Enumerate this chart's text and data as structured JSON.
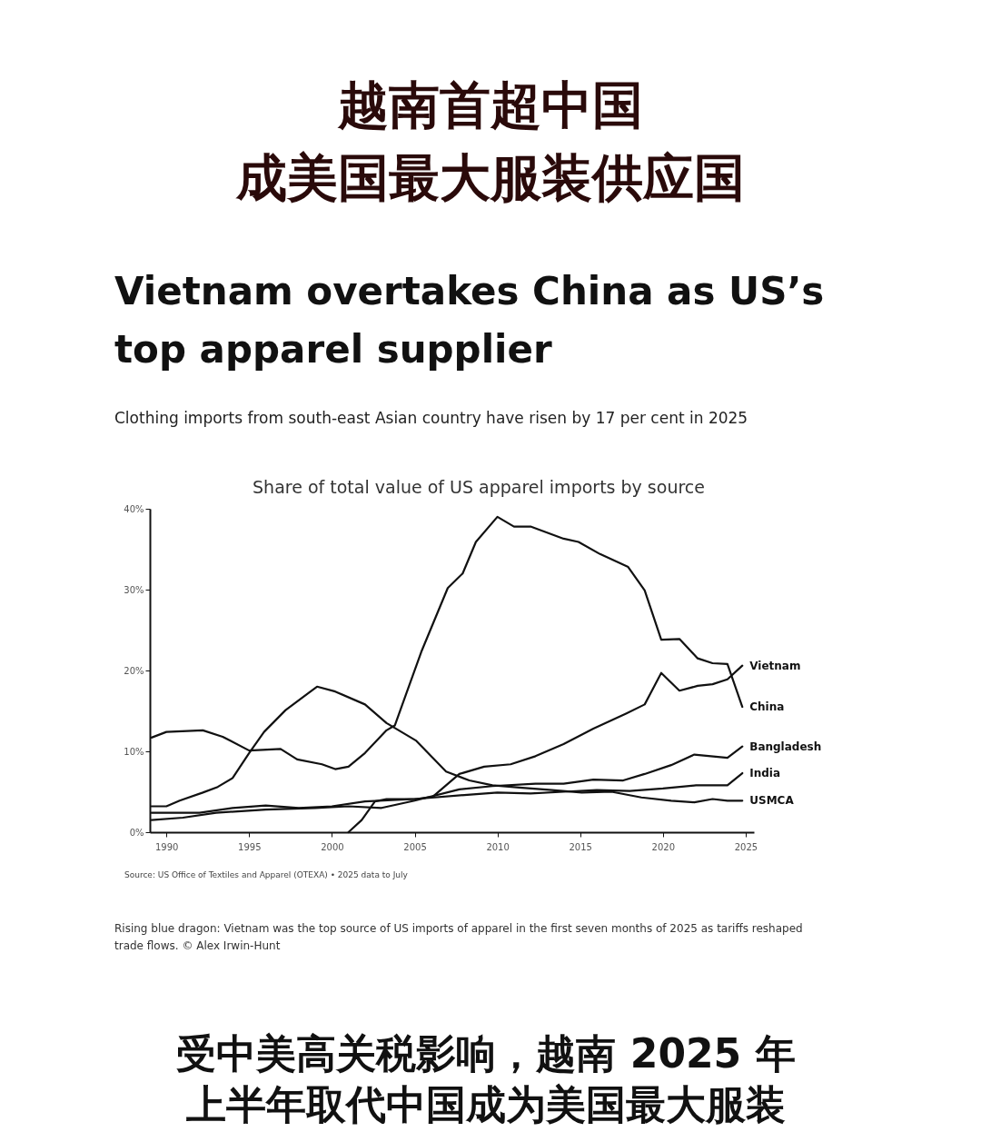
{
  "chart_data": {
    "type": "line",
    "title": "越南首超中国成美国最大服装供应国",
    "subtitle": "Vietnam overtakes China as US’s\ntop apparel supplier",
    "annotations": [
      "Clothing imports from south-east Asian country have risen by 17 per cent in 2025",
      "Share of total value of US apparel imports by source",
      "Source: US Office of Textiles and Apparel (OTEXA) • 2025 data to July",
      "Rising blue dragon: Vietnam was the top source of US imports of apparel in the first seven months of 2025 as tariffs reshaped\ntrade flows. © Alex Irwin-Hunt",
      "受中美高关税影响，越南 2025 年上半年取代中国成为美国最大服装"
    ],
    "xlim": [
      1989,
      2025.5
    ],
    "xticks": [
      1990,
      1995,
      2000,
      2005,
      2010,
      2015,
      2020,
      2025
    ],
    "ylim": [
      0,
      40
    ],
    "yticks": [
      {
        "value": 0,
        "label": "0%"
      },
      {
        "value": 10,
        "label": "10%"
      },
      {
        "value": 20,
        "label": "20%"
      },
      {
        "value": 30,
        "label": "30%"
      },
      {
        "value": 40,
        "label": "40%"
      }
    ],
    "grid": false,
    "legend": false,
    "series": [
      {
        "name": "Vietnam",
        "color": "#111111",
        "x": [
          2001.0,
          2001.8,
          2002.6,
          2003.3,
          2005.1,
          2006.1,
          2007.7,
          2009.2,
          2010.8,
          2012.3,
          2014.0,
          2015.8,
          2017.8,
          2018.9,
          2019.9,
          2021.0,
          2022.1,
          2023.0,
          2023.9,
          2024.8
        ],
        "values": [
          0,
          1.5,
          3.8,
          4.1,
          4.1,
          4.4,
          7.2,
          8.1,
          8.4,
          9.4,
          10.9,
          12.8,
          14.7,
          15.8,
          19.7,
          17.5,
          18.1,
          18.3,
          18.9,
          20.6
        ]
      },
      {
        "name": "China",
        "color": "#111111",
        "x": [
          1989.1,
          1990.0,
          1992.2,
          1993.4,
          1995.0,
          1996.9,
          1997.9,
          1999.4,
          2000.2,
          2001.0,
          2002.0,
          2003.3,
          2003.8,
          2005.4,
          2007.0,
          2007.9,
          2008.7,
          2010.0,
          2011.0,
          2012.0,
          2014.0,
          2014.9,
          2016.2,
          2017.9,
          2018.9,
          2019.9,
          2021.0,
          2022.1,
          2023.0,
          2023.9,
          2024.8
        ],
        "values": [
          11.7,
          12.4,
          12.6,
          11.8,
          10.1,
          10.3,
          9.0,
          8.4,
          7.8,
          8.1,
          9.8,
          12.6,
          13.2,
          22.3,
          30.2,
          32.0,
          35.9,
          39.0,
          37.8,
          37.8,
          36.3,
          35.9,
          34.4,
          32.8,
          29.9,
          23.8,
          23.9,
          21.5,
          20.9,
          20.8,
          15.5
        ]
      },
      {
        "name": "Bangladesh",
        "color": "#111111",
        "x": [
          1989.1,
          1991.0,
          1993.0,
          1996.0,
          1999.0,
          2001.0,
          2003.0,
          2005.0,
          2007.7,
          2009.7,
          2012.3,
          2014.0,
          2015.8,
          2017.6,
          2018.9,
          2020.5,
          2021.9,
          2023.9,
          2024.8
        ],
        "values": [
          1.5,
          1.8,
          2.4,
          2.8,
          3.0,
          3.2,
          3.0,
          3.9,
          5.3,
          5.7,
          6.0,
          6.0,
          6.5,
          6.4,
          7.2,
          8.3,
          9.6,
          9.2,
          10.6
        ]
      },
      {
        "name": "India",
        "color": "#111111",
        "x": [
          1989.1,
          1992.0,
          1994.0,
          1996.0,
          1998.0,
          2000.0,
          2002.0,
          2005.0,
          2008.0,
          2010.0,
          2012.0,
          2014.0,
          2016.0,
          2018.0,
          2020.0,
          2022.0,
          2023.9,
          2024.8
        ],
        "values": [
          2.4,
          2.4,
          3.0,
          3.3,
          3.0,
          3.2,
          3.8,
          4.1,
          4.6,
          4.9,
          4.8,
          5.0,
          5.2,
          5.1,
          5.4,
          5.8,
          5.8,
          7.3
        ]
      },
      {
        "name": "USMCA",
        "color": "#111111",
        "x": [
          1989.1,
          1990.0,
          1990.8,
          1992.2,
          1993.1,
          1994.0,
          1995.0,
          1995.9,
          1997.2,
          1999.1,
          2000.2,
          2002.0,
          2003.3,
          2005.1,
          2006.9,
          2008.3,
          2009.7,
          2011.5,
          2013.3,
          2015.1,
          2016.9,
          2018.7,
          2020.5,
          2021.9,
          2023.0,
          2023.9,
          2024.8
        ],
        "values": [
          3.2,
          3.2,
          3.9,
          4.9,
          5.6,
          6.7,
          9.8,
          12.4,
          15.1,
          18.0,
          17.4,
          15.8,
          13.5,
          11.3,
          7.5,
          6.4,
          5.8,
          5.5,
          5.2,
          4.9,
          5.0,
          4.3,
          3.9,
          3.7,
          4.1,
          3.9,
          3.9
        ]
      }
    ]
  }
}
